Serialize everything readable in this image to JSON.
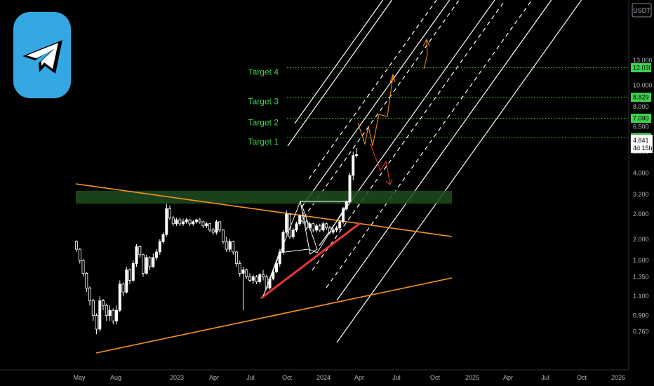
{
  "currency_label": "USDT",
  "price_axis": {
    "ticks": [
      "13.000",
      "10.000",
      "8.000",
      "6.500",
      "5.000",
      "4.000",
      "3.200",
      "2.600",
      "2.000",
      "1.600",
      "1.350",
      "1.100",
      "0.900",
      "0.760"
    ],
    "tick_values": [
      13.0,
      10.0,
      8.0,
      6.5,
      5.0,
      4.0,
      3.2,
      2.6,
      2.0,
      1.6,
      1.35,
      1.1,
      0.9,
      0.76
    ]
  },
  "time_axis": {
    "labels": [
      "May",
      "Aug",
      "2023",
      "Apr",
      "Jul",
      "Oct",
      "2024",
      "Apr",
      "Jul",
      "Oct",
      "2025",
      "Apr",
      "Jul",
      "Oct",
      "2026"
    ]
  },
  "last_price": {
    "value": "4.841",
    "countdown": "4d 15h"
  },
  "targets": [
    {
      "label": "Target 1",
      "price": "5.790"
    },
    {
      "label": "Target 2",
      "price": "7.090"
    },
    {
      "label": "Target 3",
      "price": "8.829"
    },
    {
      "label": "Target 4",
      "price": "12.030"
    }
  ],
  "colors": {
    "background": "#000000",
    "target_green": "#3fd14f",
    "trendline_orange": "#f7931a",
    "support_red": "#e53935",
    "zone_green": "#1e4d1e",
    "logo_blue": "#35a7e2"
  },
  "icons": {
    "logo": "telegram-icon"
  },
  "chart_data": {
    "type": "candlestick",
    "scale": "log",
    "quote_currency": "USDT",
    "x_range": [
      "2022-05",
      "2026-01"
    ],
    "y_range": [
      0.7,
      14
    ],
    "last_price": 4.841,
    "targets": [
      5.79,
      7.09,
      8.829,
      12.03
    ],
    "series": [
      {
        "values": [
          [
            1.95,
            1.98,
            1.75,
            1.8
          ],
          [
            1.8,
            1.82,
            1.55,
            1.6
          ],
          [
            1.6,
            1.62,
            1.35,
            1.4
          ],
          [
            1.4,
            1.42,
            1.15,
            1.2
          ],
          [
            1.2,
            1.22,
            1.0,
            1.05
          ],
          [
            1.05,
            1.07,
            0.85,
            0.9
          ],
          [
            0.9,
            0.92,
            0.74,
            0.78
          ],
          [
            0.78,
            1.1,
            0.76,
            1.05
          ],
          [
            1.05,
            1.07,
            0.95,
            1.0
          ],
          [
            1.0,
            1.02,
            0.85,
            0.9
          ],
          [
            0.9,
            1.0,
            0.85,
            0.95
          ],
          [
            0.95,
            0.97,
            0.82,
            0.85
          ],
          [
            0.85,
            1.0,
            0.82,
            0.95
          ],
          [
            0.95,
            1.3,
            0.93,
            1.25
          ],
          [
            1.25,
            1.27,
            1.1,
            1.15
          ],
          [
            1.15,
            1.5,
            1.13,
            1.45
          ],
          [
            1.45,
            1.47,
            1.25,
            1.3
          ],
          [
            1.3,
            1.6,
            1.28,
            1.55
          ],
          [
            1.55,
            1.9,
            1.5,
            1.85
          ],
          [
            1.85,
            1.87,
            1.65,
            1.7
          ],
          [
            1.7,
            1.72,
            1.35,
            1.4
          ],
          [
            1.4,
            1.7,
            1.38,
            1.65
          ],
          [
            1.65,
            1.67,
            1.45,
            1.5
          ],
          [
            1.5,
            1.72,
            1.48,
            1.65
          ],
          [
            1.65,
            1.8,
            1.6,
            1.75
          ],
          [
            1.75,
            2.0,
            1.7,
            1.95
          ],
          [
            1.95,
            2.15,
            1.9,
            2.1
          ],
          [
            2.1,
            2.9,
            2.05,
            2.75
          ],
          [
            2.75,
            2.85,
            2.45,
            2.5
          ],
          [
            2.5,
            2.55,
            2.3,
            2.35
          ],
          [
            2.35,
            2.5,
            2.3,
            2.45
          ],
          [
            2.45,
            2.5,
            2.3,
            2.35
          ],
          [
            2.35,
            2.48,
            2.3,
            2.4
          ],
          [
            2.4,
            2.5,
            2.35,
            2.45
          ],
          [
            2.45,
            2.47,
            2.3,
            2.35
          ],
          [
            2.35,
            2.45,
            2.3,
            2.4
          ],
          [
            2.4,
            2.48,
            2.35,
            2.45
          ],
          [
            2.45,
            2.5,
            2.35,
            2.4
          ],
          [
            2.4,
            2.42,
            2.25,
            2.3
          ],
          [
            2.3,
            2.4,
            2.25,
            2.35
          ],
          [
            2.35,
            2.37,
            2.15,
            2.2
          ],
          [
            2.2,
            2.25,
            2.1,
            2.15
          ],
          [
            2.15,
            2.45,
            2.1,
            2.4
          ],
          [
            2.4,
            2.42,
            2.15,
            2.2
          ],
          [
            2.2,
            2.22,
            1.9,
            1.95
          ],
          [
            1.95,
            2.05,
            1.75,
            1.8
          ],
          [
            1.8,
            2.0,
            1.75,
            1.95
          ],
          [
            1.95,
            1.97,
            1.7,
            1.75
          ],
          [
            1.75,
            1.77,
            1.5,
            1.55
          ],
          [
            1.55,
            1.6,
            1.35,
            1.4
          ],
          [
            1.4,
            1.5,
            0.95,
            1.45
          ],
          [
            1.45,
            1.47,
            1.32,
            1.35
          ],
          [
            1.35,
            1.4,
            1.28,
            1.3
          ],
          [
            1.3,
            1.38,
            1.25,
            1.35
          ],
          [
            1.35,
            1.37,
            1.25,
            1.28
          ],
          [
            1.28,
            1.4,
            1.25,
            1.38
          ],
          [
            1.38,
            1.45,
            1.3,
            1.35
          ],
          [
            1.35,
            1.38,
            1.18,
            1.2
          ],
          [
            1.2,
            1.35,
            1.18,
            1.32
          ],
          [
            1.32,
            1.45,
            1.3,
            1.42
          ],
          [
            1.42,
            1.6,
            1.4,
            1.55
          ],
          [
            1.55,
            1.8,
            1.5,
            1.75
          ],
          [
            1.75,
            2.2,
            1.7,
            2.15
          ],
          [
            2.15,
            2.7,
            2.1,
            2.6
          ],
          [
            2.6,
            2.62,
            2.0,
            2.05
          ],
          [
            2.05,
            2.25,
            2.0,
            2.2
          ],
          [
            2.2,
            2.4,
            2.15,
            2.35
          ],
          [
            2.35,
            2.6,
            2.3,
            2.55
          ],
          [
            2.55,
            2.65,
            2.35,
            2.4
          ],
          [
            2.4,
            2.45,
            2.2,
            2.25
          ],
          [
            2.25,
            2.4,
            2.2,
            2.35
          ],
          [
            2.35,
            2.38,
            2.15,
            2.2
          ],
          [
            2.2,
            2.35,
            2.15,
            2.3
          ],
          [
            2.3,
            2.35,
            2.15,
            2.2
          ],
          [
            2.2,
            2.4,
            2.15,
            2.35
          ],
          [
            2.35,
            2.38,
            2.2,
            2.25
          ],
          [
            2.25,
            2.3,
            2.1,
            2.15
          ],
          [
            2.15,
            2.25,
            2.1,
            2.2
          ],
          [
            2.2,
            2.3,
            2.15,
            2.25
          ],
          [
            2.25,
            2.45,
            2.2,
            2.4
          ],
          [
            2.4,
            2.8,
            2.35,
            2.75
          ],
          [
            2.75,
            3.0,
            2.7,
            2.95
          ],
          [
            2.95,
            4.0,
            2.9,
            3.9
          ],
          [
            3.9,
            5.0,
            3.7,
            4.8
          ],
          [
            4.8,
            5.2,
            4.7,
            4.841
          ]
        ]
      }
    ]
  }
}
